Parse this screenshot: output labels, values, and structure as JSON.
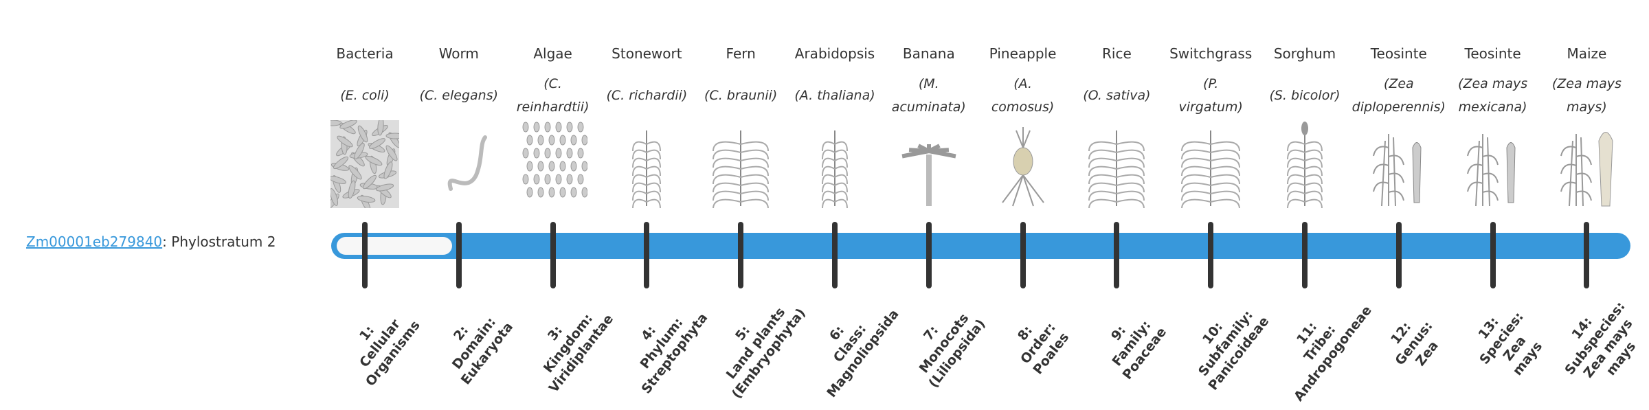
{
  "gene": {
    "id": "Zm00001eb279840",
    "suffix": ": Phylostratum 2"
  },
  "colors": {
    "bar": "#3898db",
    "tick": "#333333",
    "link": "#3898db"
  },
  "current_stratum": 2,
  "organisms": [
    {
      "common": "Bacteria",
      "latin": [
        "(E. coli)"
      ],
      "icon": "bacteria-icon",
      "stratum": [
        "1:",
        "Cellular",
        "Organisms"
      ]
    },
    {
      "common": "Worm",
      "latin": [
        "(C. elegans)"
      ],
      "icon": "worm-icon",
      "stratum": [
        "2:",
        "Domain:",
        "Eukaryota"
      ]
    },
    {
      "common": "Algae",
      "latin": [
        "(C.",
        "reinhardtii)"
      ],
      "icon": "algae-icon",
      "stratum": [
        "3:",
        "Kingdom:",
        "Viridiplantae"
      ]
    },
    {
      "common": "Stonewort",
      "latin": [
        "(C. richardii)"
      ],
      "icon": "stonewort-icon",
      "stratum": [
        "4:",
        "Phylum:",
        "Streptophyta"
      ]
    },
    {
      "common": "Fern",
      "latin": [
        "(C. braunii)"
      ],
      "icon": "fern-icon",
      "stratum": [
        "5:",
        "Land plants",
        "(Embryophyta)"
      ]
    },
    {
      "common": "Arabidopsis",
      "latin": [
        "(A. thaliana)"
      ],
      "icon": "arabidopsis-icon",
      "stratum": [
        "6:",
        "Class:",
        "Magnoliopsida"
      ]
    },
    {
      "common": "Banana",
      "latin": [
        "(M.",
        "acuminata)"
      ],
      "icon": "banana-icon",
      "stratum": [
        "7:",
        "Monocots",
        "(Liliopsida)"
      ]
    },
    {
      "common": "Pineapple",
      "latin": [
        "(A.",
        "comosus)"
      ],
      "icon": "pineapple-icon",
      "stratum": [
        "8:",
        "Order:",
        "Poales"
      ]
    },
    {
      "common": "Rice",
      "latin": [
        "(O. sativa)"
      ],
      "icon": "rice-icon",
      "stratum": [
        "9:",
        "Family:",
        "Poaceae"
      ]
    },
    {
      "common": "Switchgrass",
      "latin": [
        "(P.",
        "virgatum)"
      ],
      "icon": "switchgrass-icon",
      "stratum": [
        "10:",
        "Subfamily:",
        "Panicoideae"
      ]
    },
    {
      "common": "Sorghum",
      "latin": [
        "(S. bicolor)"
      ],
      "icon": "sorghum-icon",
      "stratum": [
        "11:",
        "Tribe:",
        "Andropogoneae"
      ]
    },
    {
      "common": "Teosinte",
      "latin": [
        "(Zea",
        "diploperennis)"
      ],
      "icon": "teosinte-icon",
      "stratum": [
        "12:",
        "Genus:",
        "Zea"
      ]
    },
    {
      "common": "Teosinte",
      "latin": [
        "(Zea mays",
        "mexicana)"
      ],
      "icon": "teosinte-icon",
      "stratum": [
        "13:",
        "Species:",
        "Zea",
        "mays"
      ]
    },
    {
      "common": "Maize",
      "latin": [
        "(Zea mays",
        "mays)"
      ],
      "icon": "maize-icon",
      "stratum": [
        "14:",
        "Subspecies:",
        "Zea mays",
        "mays"
      ]
    }
  ]
}
